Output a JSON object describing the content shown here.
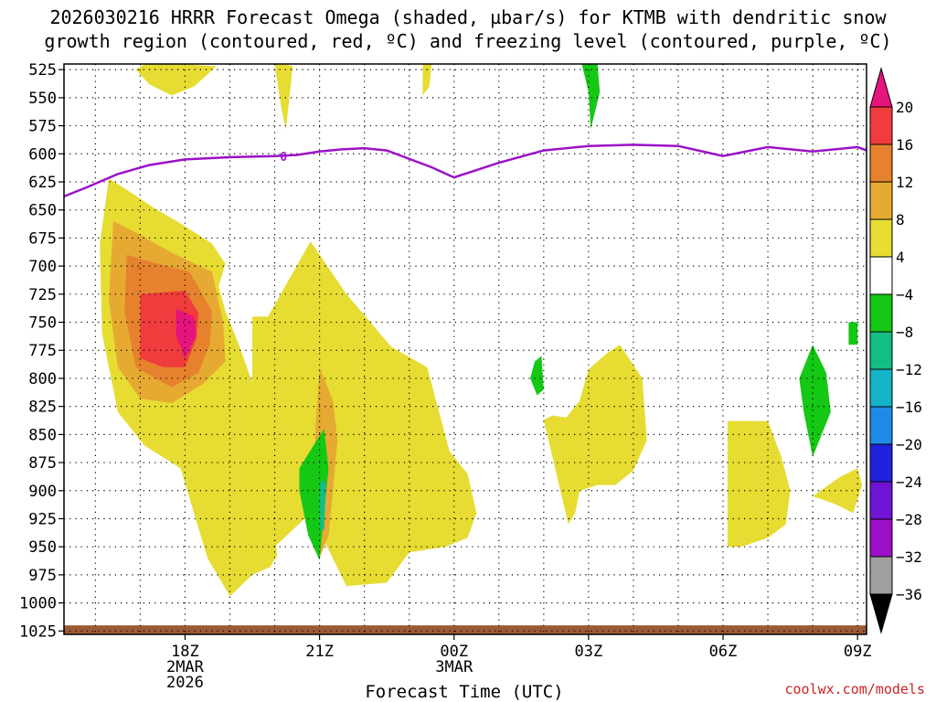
{
  "chart_data": {
    "type": "heatmap",
    "title_line1": "2026030216 HRRR Forecast Omega (shaded, µbar/s) for KTMB with dendritic snow",
    "title_line2": "growth region (contoured, red, ºC) and freezing level (contoured, purple, ºC)",
    "xlabel": "Forecast Time (UTC)",
    "ylabel": "",
    "credit": "coolwx.com/models",
    "x_range_hours": [
      -2.7,
      15.2
    ],
    "y_range_hpa": [
      520,
      1028
    ],
    "y_ticks": [
      525,
      550,
      575,
      600,
      625,
      650,
      675,
      700,
      725,
      750,
      775,
      800,
      825,
      850,
      875,
      900,
      925,
      950,
      975,
      1000,
      1025
    ],
    "x_ticks": [
      {
        "hour": 0,
        "lines": [
          "18Z",
          "2MAR",
          "2026"
        ]
      },
      {
        "hour": 3,
        "lines": [
          "21Z"
        ]
      },
      {
        "hour": 6,
        "lines": [
          "00Z",
          "3MAR"
        ]
      },
      {
        "hour": 9,
        "lines": [
          "03Z"
        ]
      },
      {
        "hour": 12,
        "lines": [
          "06Z"
        ]
      },
      {
        "hour": 15,
        "lines": [
          "09Z"
        ]
      }
    ],
    "colorbar": {
      "levels": [
        -36,
        -32,
        -28,
        -24,
        -20,
        -16,
        -12,
        -8,
        -4,
        4,
        8,
        12,
        16,
        20
      ],
      "labels": [
        "20",
        "16",
        "12",
        "8",
        "4",
        "−4",
        "−8",
        "−12",
        "−16",
        "−20",
        "−24",
        "−28",
        "−32",
        "−36"
      ],
      "colors": [
        "#000000",
        "#a0a0a0",
        "#9b0fc8",
        "#6e14d2",
        "#2222dc",
        "#1e8ce6",
        "#14b4c8",
        "#14be82",
        "#14c814",
        "#ffffff",
        "#e6dc32",
        "#e6aa32",
        "#e6822d",
        "#f03c3c",
        "#e6147d"
      ]
    },
    "freezing_level": {
      "label": "0",
      "color": "#9b12c8",
      "hours": [
        -2.7,
        -2.2,
        -1.5,
        -0.8,
        0,
        1.0,
        2.0,
        2.5,
        3.0,
        3.5,
        4.0,
        4.5,
        5.5,
        6.0,
        7.0,
        8.0,
        9.0,
        10.0,
        11.0,
        12.0,
        13.0,
        14.0,
        15.0,
        15.2
      ],
      "pressure": [
        638,
        630,
        618,
        610,
        605,
        603,
        602,
        601,
        598,
        596,
        595,
        597,
        612,
        621,
        608,
        597,
        593,
        592,
        593,
        602,
        594,
        598,
        594,
        597
      ]
    },
    "omega_regions": [
      {
        "name": "big-positive-4",
        "value": 4,
        "hours": [
          -1.7,
          -1.3,
          -0.7,
          -0.1,
          0.6,
          0.9,
          0.75,
          0.9,
          1.2,
          1.6,
          1.9,
          2.05,
          1.9,
          1.5,
          1.0,
          0.5,
          -0.1,
          -0.9,
          -1.5,
          -1.85,
          -1.9
        ],
        "pressure": [
          622,
          632,
          648,
          662,
          680,
          698,
          718,
          740,
          770,
          815,
          875,
          958,
          968,
          975,
          994,
          960,
          880,
          860,
          830,
          760,
          680
        ]
      },
      {
        "name": "big-positive-8",
        "value": 8,
        "hours": [
          -1.6,
          -1.0,
          -0.3,
          0.6,
          0.85,
          0.9,
          0.4,
          -0.3,
          -1.0,
          -1.5,
          -1.7
        ],
        "pressure": [
          660,
          672,
          688,
          705,
          750,
          785,
          805,
          822,
          818,
          790,
          730
        ]
      },
      {
        "name": "big-positive-12",
        "value": 12,
        "hours": [
          -1.3,
          -0.6,
          0.1,
          0.6,
          0.55,
          0.3,
          -0.3,
          -1.1,
          -1.35
        ],
        "pressure": [
          690,
          698,
          705,
          740,
          770,
          795,
          808,
          790,
          740
        ]
      },
      {
        "name": "big-positive-16",
        "value": 16,
        "hours": [
          -1.0,
          0.0,
          0.3,
          0.25,
          0.0,
          -0.5,
          -1.0,
          -1.0
        ],
        "pressure": [
          725,
          722,
          742,
          765,
          790,
          790,
          782,
          752
        ]
      },
      {
        "name": "big-positive-20",
        "value": 20,
        "hours": [
          -0.2,
          0.2,
          0.25,
          0.0,
          -0.2
        ],
        "pressure": [
          738,
          745,
          762,
          782,
          762
        ]
      },
      {
        "name": "mid-positive-4",
        "value": 4,
        "hours": [
          1.5,
          1.85,
          2.8,
          3.6,
          4.6,
          5.4,
          5.9,
          6.3,
          6.5,
          6.3,
          5.8,
          5.0,
          4.5,
          3.6,
          2.8,
          2.0,
          1.8,
          1.5
        ],
        "pressure": [
          745,
          745,
          678,
          725,
          772,
          790,
          865,
          885,
          920,
          942,
          950,
          955,
          982,
          985,
          920,
          950,
          948,
          925
        ]
      },
      {
        "name": "mid-positive-8",
        "value": 8,
        "hours": [
          3.0,
          3.3,
          3.4,
          3.3,
          3.2,
          3.0,
          2.9,
          2.9
        ],
        "pressure": [
          790,
          820,
          855,
          900,
          940,
          960,
          940,
          850
        ]
      },
      {
        "name": "right-positive-4",
        "value": 4,
        "hours": [
          8.0,
          8.2,
          8.5,
          8.8,
          9.0,
          9.4,
          9.7,
          10.2,
          10.3,
          10.0,
          9.6,
          9.2,
          8.8,
          8.7,
          8.55
        ],
        "pressure": [
          837,
          833,
          835,
          820,
          792,
          778,
          770,
          800,
          855,
          882,
          895,
          895,
          900,
          920,
          930
        ]
      },
      {
        "name": "right-positive-4b",
        "value": 4,
        "hours": [
          12.1,
          13.0,
          13.3,
          13.5,
          13.4,
          13.0,
          12.4,
          12.1
        ],
        "pressure": [
          838,
          838,
          870,
          900,
          930,
          942,
          950,
          950
        ]
      },
      {
        "name": "far-right-positive-4",
        "value": 4,
        "hours": [
          14.0,
          14.6,
          15.0,
          15.1,
          14.9,
          14.5
        ],
        "pressure": [
          905,
          888,
          880,
          895,
          920,
          912
        ]
      },
      {
        "name": "top-positive-a",
        "value": 4,
        "hours": [
          -1.1,
          -0.9,
          -0.1,
          0.7,
          0.2,
          -0.3,
          -0.8
        ],
        "pressure": [
          525,
          520,
          520,
          522,
          540,
          548,
          538
        ]
      },
      {
        "name": "top-positive-b",
        "value": 4,
        "hours": [
          2.0,
          2.2,
          2.4,
          2.3,
          2.25,
          2.15
        ],
        "pressure": [
          520,
          520,
          522,
          560,
          578,
          560
        ]
      },
      {
        "name": "top-positive-c",
        "value": 4,
        "hours": [
          5.3,
          5.5,
          5.45,
          5.3,
          5.3
        ],
        "pressure": [
          520,
          520,
          540,
          548,
          538
        ]
      },
      {
        "name": "top-negative-a",
        "value": -8,
        "hours": [
          8.85,
          9.2,
          9.25,
          9.05,
          9.0
        ],
        "pressure": [
          520,
          520,
          545,
          578,
          545
        ]
      },
      {
        "name": "neg-left-a",
        "value": -8,
        "hours": [
          2.55,
          3.1,
          3.2,
          3.1,
          3.0,
          2.75,
          2.55
        ],
        "pressure": [
          880,
          845,
          880,
          920,
          962,
          940,
          900
        ]
      },
      {
        "name": "neg-left-a-core",
        "value": -12,
        "hours": [
          3.0,
          3.15,
          3.1,
          3.0
        ],
        "pressure": [
          892,
          892,
          935,
          935
        ]
      },
      {
        "name": "neg-mid-b",
        "value": -8,
        "hours": [
          7.8,
          7.95,
          8.0,
          7.85,
          7.7
        ],
        "pressure": [
          785,
          780,
          810,
          815,
          800
        ]
      },
      {
        "name": "neg-right-c",
        "value": -8,
        "hours": [
          14.8,
          15.0,
          15.0,
          14.8
        ],
        "pressure": [
          750,
          750,
          770,
          770
        ]
      },
      {
        "name": "neg-right-d",
        "value": -8,
        "hours": [
          13.7,
          14.0,
          14.3,
          14.4,
          14.2,
          14.0,
          13.8
        ],
        "pressure": [
          800,
          770,
          795,
          830,
          850,
          870,
          830
        ]
      }
    ],
    "surface_band": {
      "color": "#9b5a34",
      "pressure_top": 1020,
      "pressure_bottom": 1028
    }
  }
}
